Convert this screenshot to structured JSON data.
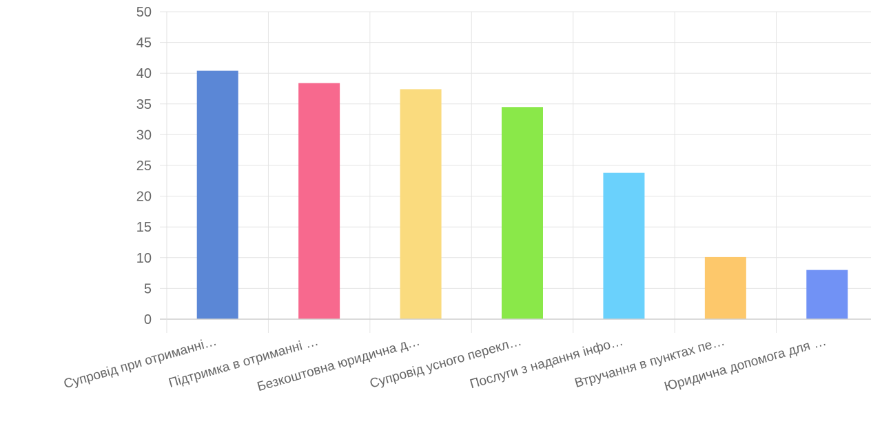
{
  "chart_data": {
    "type": "bar",
    "categories": [
      "Супровід при отриманні…",
      "Підтримка в отриманні …",
      "Безкоштовна юридична д…",
      "Супровід усного перекл…",
      "Послуги з надання інфо…",
      "Втручання в пунктах пе…",
      "Юридична допомога для …"
    ],
    "values": [
      40.4,
      38.4,
      37.4,
      34.5,
      23.8,
      10.1,
      8.0
    ],
    "colors": [
      "#5b87d6",
      "#f7698e",
      "#fadb7e",
      "#8ae849",
      "#6ad1fc",
      "#fdc86b",
      "#7192f5"
    ],
    "ylim": [
      0,
      50
    ],
    "yticks": [
      "0",
      "5",
      "10",
      "15",
      "20",
      "25",
      "30",
      "35",
      "40",
      "45",
      "50"
    ],
    "grid": true,
    "legend": "none",
    "title": "",
    "xlabel": "",
    "ylabel": ""
  }
}
